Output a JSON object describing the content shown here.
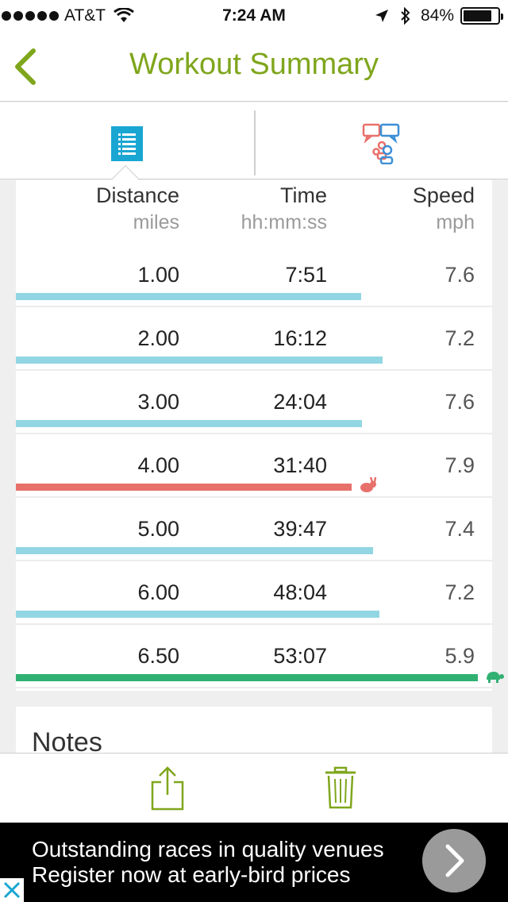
{
  "status_bar": {
    "carrier": "AT&T",
    "time": "7:24 AM",
    "battery": "84%",
    "battery_level": 0.84
  },
  "nav": {
    "title": "Workout Summary",
    "back_icon": "chevron-left-icon"
  },
  "tabs": [
    {
      "icon": "list-icon",
      "selected": true
    },
    {
      "icon": "social-share-icon",
      "selected": false
    }
  ],
  "splits": {
    "headers": [
      {
        "label": "Distance",
        "unit": "miles"
      },
      {
        "label": "Time",
        "unit": "hh:mm:ss"
      },
      {
        "label": "Speed",
        "unit": "mph"
      }
    ],
    "rows": [
      {
        "distance": "1.00",
        "time": "7:51",
        "speed": "7.6",
        "highlight": "none"
      },
      {
        "distance": "2.00",
        "time": "16:12",
        "speed": "7.2",
        "highlight": "none"
      },
      {
        "distance": "3.00",
        "time": "24:04",
        "speed": "7.6",
        "highlight": "none"
      },
      {
        "distance": "4.00",
        "time": "31:40",
        "speed": "7.9",
        "highlight": "fastest"
      },
      {
        "distance": "5.00",
        "time": "39:47",
        "speed": "7.4",
        "highlight": "none"
      },
      {
        "distance": "6.00",
        "time": "48:04",
        "speed": "7.2",
        "highlight": "none"
      },
      {
        "distance": "6.50",
        "time": "53:07",
        "speed": "5.9",
        "highlight": "slowest"
      }
    ],
    "bar_fraction": [
      0.725,
      0.77,
      0.727,
      0.705,
      0.75,
      0.763,
      0.97
    ],
    "colors": {
      "normal": "#93d6e3",
      "fastest": "#e8706a",
      "slowest": "#31b073"
    }
  },
  "notes": {
    "label": "Notes"
  },
  "toolbar": {
    "share_icon": "share-icon",
    "trash_icon": "trash-icon"
  },
  "ad": {
    "line1": "Outstanding races in quality venues",
    "line2": "Register now at early-bird prices",
    "arrow_icon": "chevron-right-icon",
    "close_icon": "close-icon"
  },
  "colors": {
    "accent": "#7fa61c",
    "tab_blue": "#1aa6d2"
  }
}
